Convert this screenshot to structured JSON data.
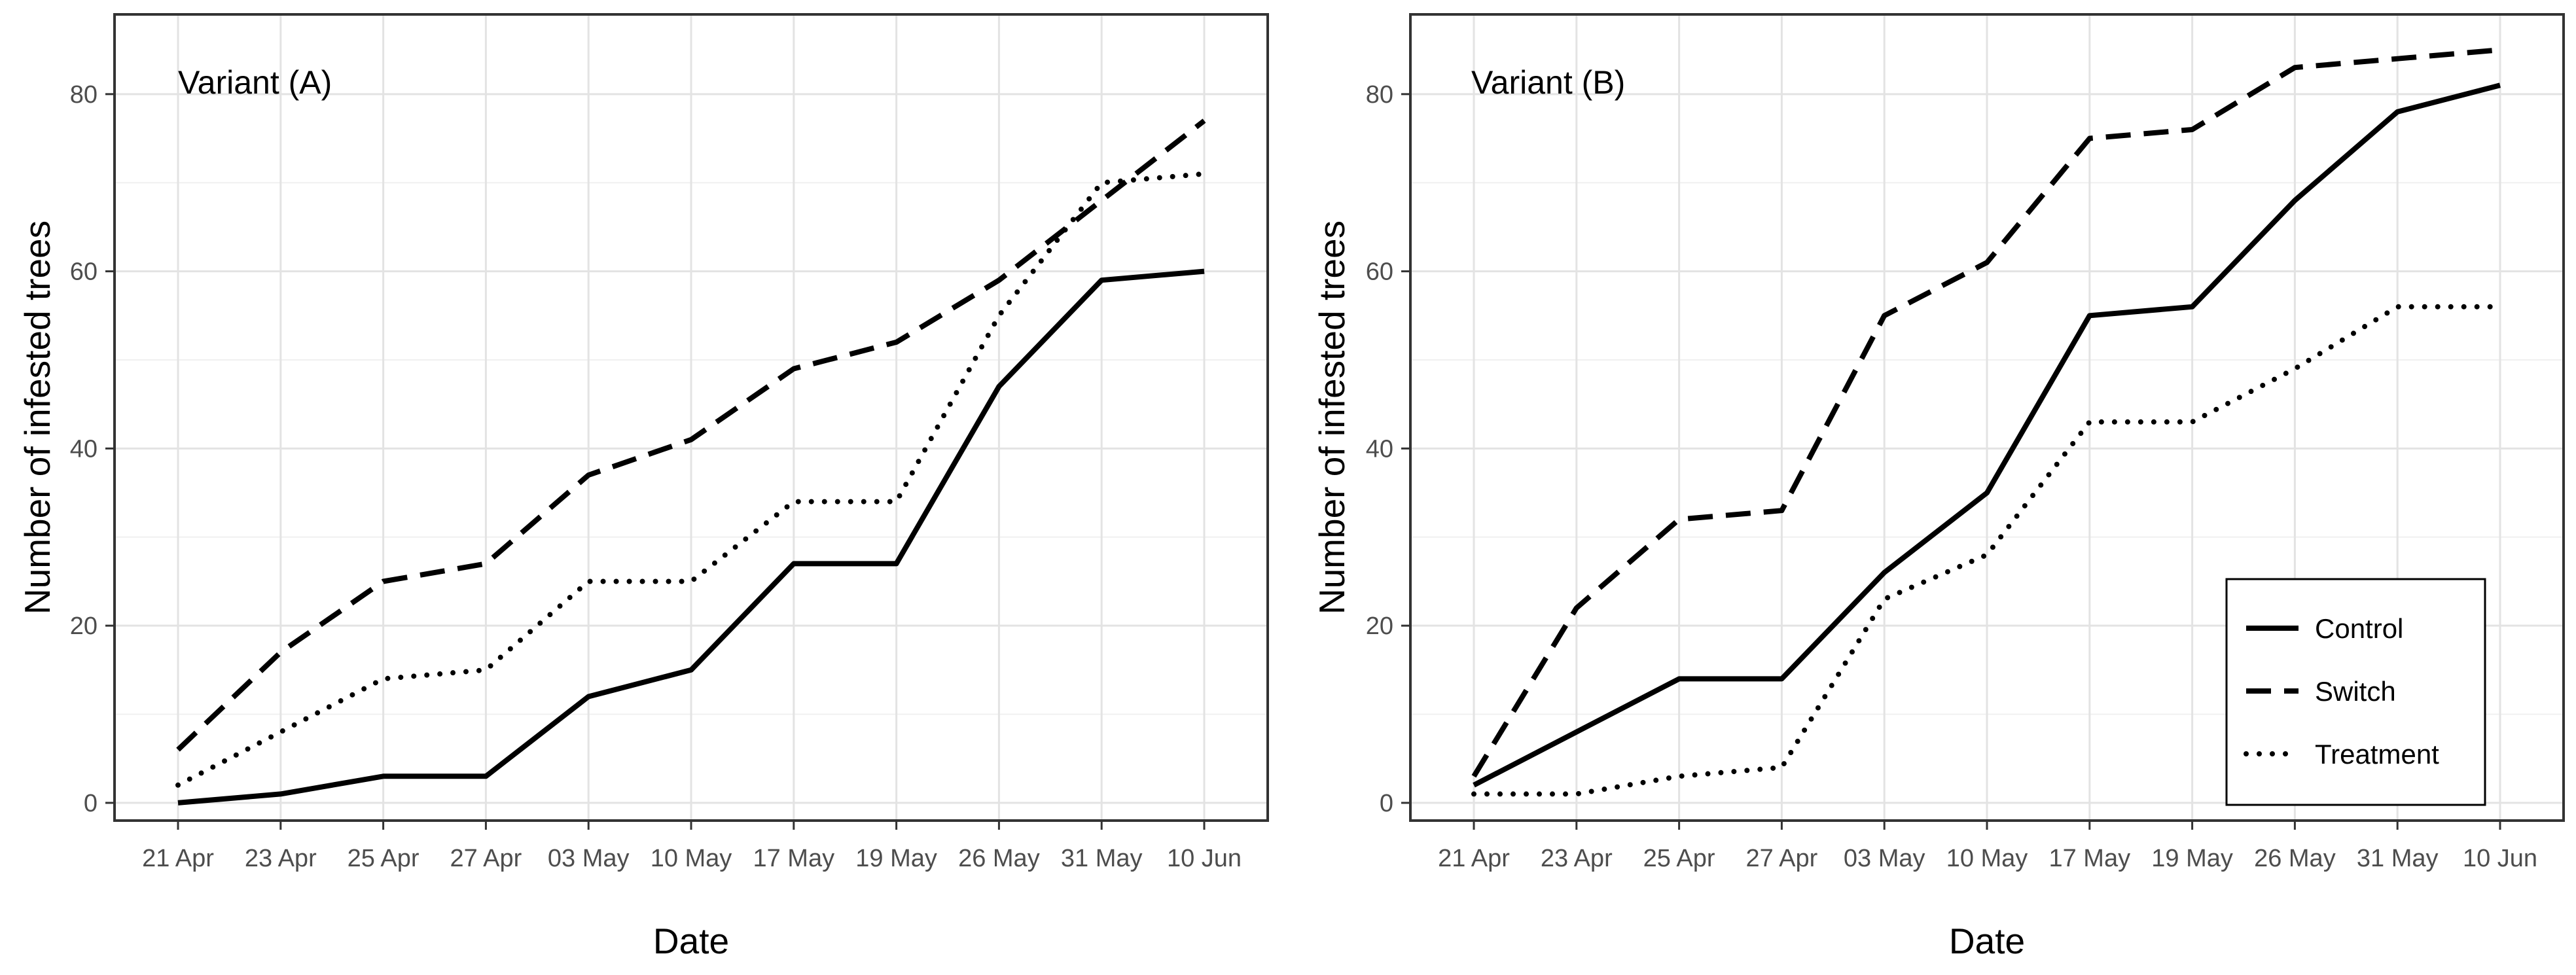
{
  "chart_data": [
    {
      "type": "line",
      "title": "Variant (A)",
      "xlabel": "Date",
      "ylabel": "Number of infested trees",
      "categories": [
        "21 Apr",
        "23 Apr",
        "25 Apr",
        "27 Apr",
        "03 May",
        "10 May",
        "17 May",
        "19 May",
        "26 May",
        "31 May",
        "10 Jun"
      ],
      "ylim": [
        -2,
        89
      ],
      "yticks": [
        0,
        20,
        40,
        60,
        80
      ],
      "series": [
        {
          "name": "Control",
          "dash": "solid",
          "values": [
            0,
            1,
            3,
            3,
            12,
            15,
            27,
            27,
            47,
            59,
            60
          ]
        },
        {
          "name": "Switch",
          "dash": "dashed",
          "values": [
            6,
            17,
            25,
            27,
            37,
            41,
            49,
            52,
            59,
            68,
            77
          ]
        },
        {
          "name": "Treatment",
          "dash": "dotted",
          "values": [
            2,
            8,
            14,
            15,
            25,
            25,
            34,
            34,
            55,
            70,
            71
          ]
        }
      ]
    },
    {
      "type": "line",
      "title": "Variant (B)",
      "xlabel": "Date",
      "ylabel": "Number of infested trees",
      "categories": [
        "21 Apr",
        "23 Apr",
        "25 Apr",
        "27 Apr",
        "03 May",
        "10 May",
        "17 May",
        "19 May",
        "26 May",
        "31 May",
        "10 Jun"
      ],
      "ylim": [
        -2,
        89
      ],
      "yticks": [
        0,
        20,
        40,
        60,
        80
      ],
      "legend_position": "bottom-right",
      "series": [
        {
          "name": "Control",
          "dash": "solid",
          "values": [
            2,
            8,
            14,
            14,
            26,
            35,
            55,
            56,
            68,
            78,
            81
          ]
        },
        {
          "name": "Switch",
          "dash": "dashed",
          "values": [
            3,
            22,
            32,
            33,
            55,
            61,
            75,
            76,
            83,
            84,
            85
          ]
        },
        {
          "name": "Treatment",
          "dash": "dotted",
          "values": [
            1,
            1,
            3,
            4,
            23,
            28,
            43,
            43,
            49,
            56,
            56
          ]
        }
      ]
    }
  ],
  "legend": {
    "items": [
      {
        "label": "Control",
        "dash": "solid"
      },
      {
        "label": "Switch",
        "dash": "dashed"
      },
      {
        "label": "Treatment",
        "dash": "dotted"
      }
    ]
  }
}
